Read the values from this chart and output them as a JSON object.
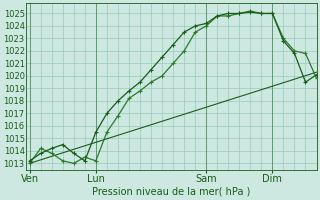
{
  "background_color": "#cce8e0",
  "grid_color": "#99ccbb",
  "line_color_1": "#1a5c1a",
  "line_color_2": "#2d7a2d",
  "line_color_3": "#1a5c1a",
  "xlabel": "Pression niveau de la mer( hPa )",
  "ylim": [
    1012.5,
    1025.8
  ],
  "yticks": [
    1013,
    1014,
    1015,
    1016,
    1017,
    1018,
    1019,
    1020,
    1021,
    1022,
    1023,
    1024,
    1025
  ],
  "xtick_labels": [
    "Ven",
    "Lun",
    "Sam",
    "Dim"
  ],
  "xtick_positions": [
    0,
    36,
    96,
    132
  ],
  "xlim": [
    -2,
    156
  ],
  "num_xgrid": 26,
  "series1_x": [
    0,
    6,
    12,
    18,
    24,
    30,
    36,
    42,
    48,
    54,
    60,
    66,
    72,
    78,
    84,
    90,
    96,
    102,
    108,
    114,
    120,
    126,
    132,
    138,
    144,
    150,
    156
  ],
  "series1_y": [
    1013.2,
    1013.8,
    1014.2,
    1014.5,
    1013.8,
    1013.2,
    1015.5,
    1017.0,
    1018.0,
    1018.8,
    1019.5,
    1020.5,
    1021.5,
    1022.5,
    1023.5,
    1024.0,
    1024.2,
    1024.8,
    1025.0,
    1025.0,
    1025.1,
    1025.0,
    1025.0,
    1022.8,
    1021.8,
    1019.5,
    1020.1
  ],
  "series2_x": [
    0,
    6,
    12,
    18,
    24,
    30,
    36,
    42,
    48,
    54,
    60,
    66,
    72,
    78,
    84,
    90,
    96,
    102,
    108,
    114,
    120,
    126,
    132,
    138,
    144,
    150,
    156
  ],
  "series2_y": [
    1013.0,
    1014.2,
    1013.8,
    1013.2,
    1013.0,
    1013.5,
    1013.2,
    1015.5,
    1016.8,
    1018.2,
    1018.8,
    1019.5,
    1020.0,
    1021.0,
    1022.0,
    1023.5,
    1024.0,
    1024.8,
    1024.8,
    1025.0,
    1025.2,
    1025.0,
    1025.0,
    1023.0,
    1022.0,
    1021.8,
    1019.8
  ],
  "series3_x": [
    0,
    156
  ],
  "series3_y": [
    1013.0,
    1020.3
  ]
}
